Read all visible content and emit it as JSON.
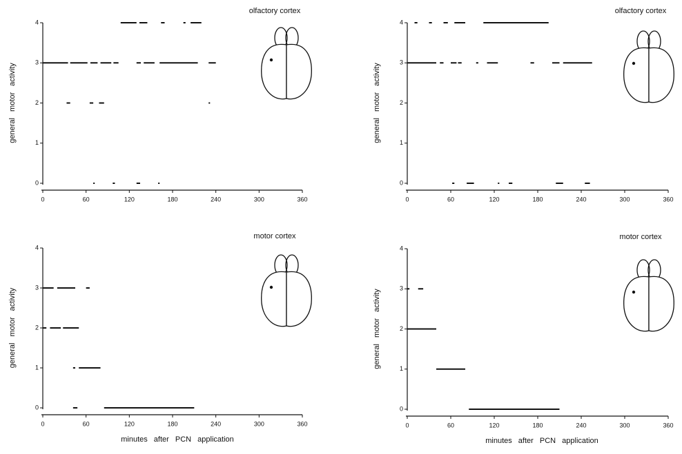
{
  "chart_data": [
    {
      "type": "segment",
      "title": "olfactory cortex",
      "ylabel": "general motor activity",
      "xlim": [
        0,
        360
      ],
      "xticks": [
        0,
        60,
        120,
        180,
        240,
        300,
        360
      ],
      "ylim": [
        0,
        4
      ],
      "yticks": [
        0,
        1,
        2,
        3,
        4
      ],
      "color": "#111",
      "segments": [
        {
          "level": 4,
          "start": 108,
          "end": 130
        },
        {
          "level": 4,
          "start": 134,
          "end": 145
        },
        {
          "level": 4,
          "start": 164,
          "end": 169
        },
        {
          "level": 4,
          "start": 195,
          "end": 198
        },
        {
          "level": 4,
          "start": 205,
          "end": 220
        },
        {
          "level": 3,
          "start": 0,
          "end": 35
        },
        {
          "level": 3,
          "start": 38,
          "end": 62
        },
        {
          "level": 3,
          "start": 66,
          "end": 76
        },
        {
          "level": 3,
          "start": 80,
          "end": 95
        },
        {
          "level": 3,
          "start": 98,
          "end": 105
        },
        {
          "level": 3,
          "start": 130,
          "end": 136
        },
        {
          "level": 3,
          "start": 140,
          "end": 155
        },
        {
          "level": 3,
          "start": 162,
          "end": 215
        },
        {
          "level": 3,
          "start": 230,
          "end": 240
        },
        {
          "level": 2,
          "start": 33,
          "end": 38
        },
        {
          "level": 2,
          "start": 65,
          "end": 70
        },
        {
          "level": 2,
          "start": 78,
          "end": 85
        },
        {
          "level": 2,
          "start": 230,
          "end": 232
        },
        {
          "level": 0,
          "start": 70,
          "end": 72
        },
        {
          "level": 0,
          "start": 97,
          "end": 100
        },
        {
          "level": 0,
          "start": 130,
          "end": 135
        },
        {
          "level": 0,
          "start": 160,
          "end": 162
        }
      ]
    },
    {
      "type": "segment",
      "title": "olfactory cortex",
      "ylabel": "general motor activity",
      "xlim": [
        0,
        360
      ],
      "xticks": [
        0,
        60,
        120,
        180,
        240,
        300,
        360
      ],
      "ylim": [
        0,
        4
      ],
      "yticks": [
        0,
        1,
        2,
        3,
        4
      ],
      "color": "#111",
      "segments": [
        {
          "level": 4,
          "start": 10,
          "end": 14
        },
        {
          "level": 4,
          "start": 30,
          "end": 34
        },
        {
          "level": 4,
          "start": 50,
          "end": 56
        },
        {
          "level": 4,
          "start": 65,
          "end": 80
        },
        {
          "level": 4,
          "start": 105,
          "end": 195
        },
        {
          "level": 3,
          "start": 0,
          "end": 40
        },
        {
          "level": 3,
          "start": 45,
          "end": 50
        },
        {
          "level": 3,
          "start": 60,
          "end": 68
        },
        {
          "level": 3,
          "start": 70,
          "end": 75
        },
        {
          "level": 3,
          "start": 95,
          "end": 98
        },
        {
          "level": 3,
          "start": 110,
          "end": 125
        },
        {
          "level": 3,
          "start": 170,
          "end": 175
        },
        {
          "level": 3,
          "start": 200,
          "end": 210
        },
        {
          "level": 3,
          "start": 215,
          "end": 255
        },
        {
          "level": 0,
          "start": 62,
          "end": 65
        },
        {
          "level": 0,
          "start": 82,
          "end": 92
        },
        {
          "level": 0,
          "start": 125,
          "end": 127
        },
        {
          "level": 0,
          "start": 140,
          "end": 145
        },
        {
          "level": 0,
          "start": 205,
          "end": 215
        },
        {
          "level": 0,
          "start": 245,
          "end": 252
        }
      ]
    },
    {
      "type": "segment",
      "title": "motor cortex",
      "ylabel": "general motor activity",
      "xlabel": "minutes after PCN application",
      "xlim": [
        0,
        360
      ],
      "xticks": [
        0,
        60,
        120,
        180,
        240,
        300,
        360
      ],
      "ylim": [
        0,
        4
      ],
      "yticks": [
        0,
        1,
        2,
        3,
        4
      ],
      "color": "#111",
      "segments": [
        {
          "level": 3,
          "start": 0,
          "end": 15
        },
        {
          "level": 3,
          "start": 20,
          "end": 45
        },
        {
          "level": 3,
          "start": 60,
          "end": 65
        },
        {
          "level": 2,
          "start": 0,
          "end": 5
        },
        {
          "level": 2,
          "start": 10,
          "end": 25
        },
        {
          "level": 2,
          "start": 28,
          "end": 50
        },
        {
          "level": 1,
          "start": 42,
          "end": 45
        },
        {
          "level": 1,
          "start": 50,
          "end": 80
        },
        {
          "level": 0,
          "start": 42,
          "end": 48
        },
        {
          "level": 0,
          "start": 85,
          "end": 210
        }
      ]
    },
    {
      "type": "segment",
      "title": "motor cortex",
      "ylabel": "general motor activity",
      "xlabel": "minutes after PCN application",
      "xlim": [
        0,
        360
      ],
      "xticks": [
        0,
        60,
        120,
        180,
        240,
        300,
        360
      ],
      "ylim": [
        0,
        4
      ],
      "yticks": [
        0,
        1,
        2,
        3,
        4
      ],
      "color": "#111",
      "segments": [
        {
          "level": 3,
          "start": 0,
          "end": 3
        },
        {
          "level": 3,
          "start": 15,
          "end": 22
        },
        {
          "level": 2,
          "start": 0,
          "end": 40
        },
        {
          "level": 1,
          "start": 40,
          "end": 80
        },
        {
          "level": 0,
          "start": 85,
          "end": 210
        }
      ]
    }
  ]
}
